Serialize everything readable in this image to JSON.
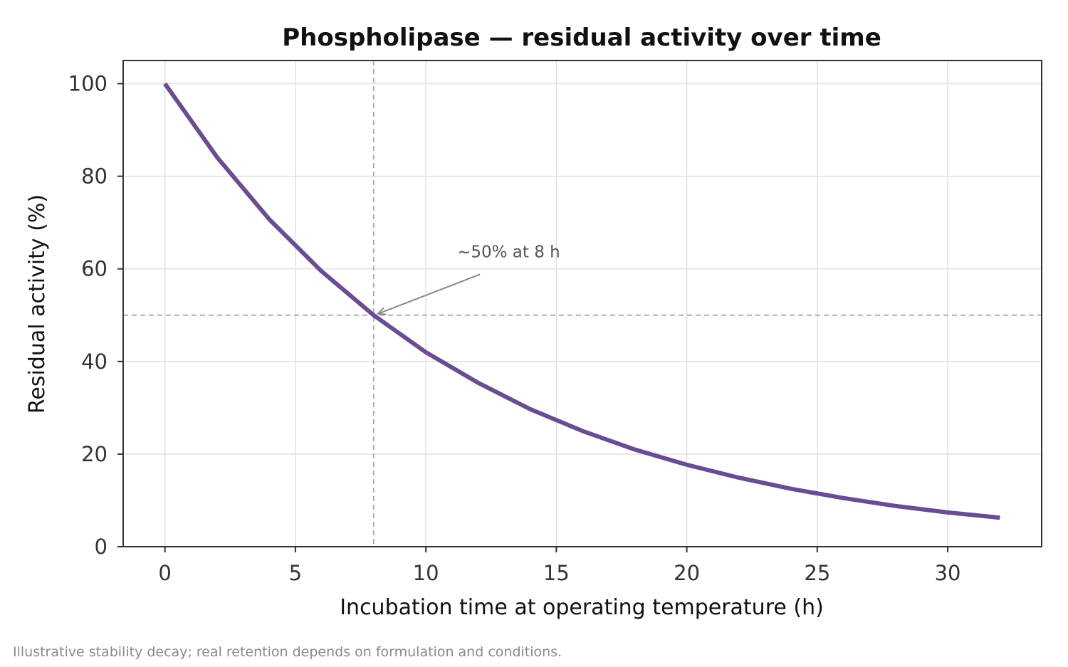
{
  "chart_data": {
    "type": "line",
    "title": "Phospholipase — residual activity over time",
    "xlabel": "Incubation time at operating temperature (h)",
    "ylabel": "Residual activity (%)",
    "xlim": [
      -1.6,
      33.6
    ],
    "ylim": [
      0,
      105
    ],
    "x_ticks": [
      0,
      5,
      10,
      15,
      20,
      25,
      30
    ],
    "y_ticks": [
      0,
      20,
      40,
      60,
      80,
      100
    ],
    "grid": true,
    "series": [
      {
        "color": "#6a4c93",
        "x": [
          0,
          2,
          4,
          6,
          8,
          10,
          12,
          14,
          16,
          18,
          20,
          22,
          24,
          26,
          28,
          30,
          32
        ],
        "y": [
          100,
          84.1,
          70.7,
          59.5,
          50.0,
          42.0,
          35.4,
          29.7,
          25.0,
          21.0,
          17.7,
          14.9,
          12.5,
          10.5,
          8.8,
          7.4,
          6.25
        ]
      }
    ],
    "reference_lines": {
      "x": 8,
      "y": 50,
      "color": "#b0b0b0",
      "style": "dashed"
    },
    "annotation": {
      "text": "~50% at 8 h",
      "x": 8,
      "y": 50,
      "text_x": 11.2,
      "text_y": 62.5
    },
    "footnote": "Illustrative stability decay; real retention depends on formulation and conditions."
  }
}
